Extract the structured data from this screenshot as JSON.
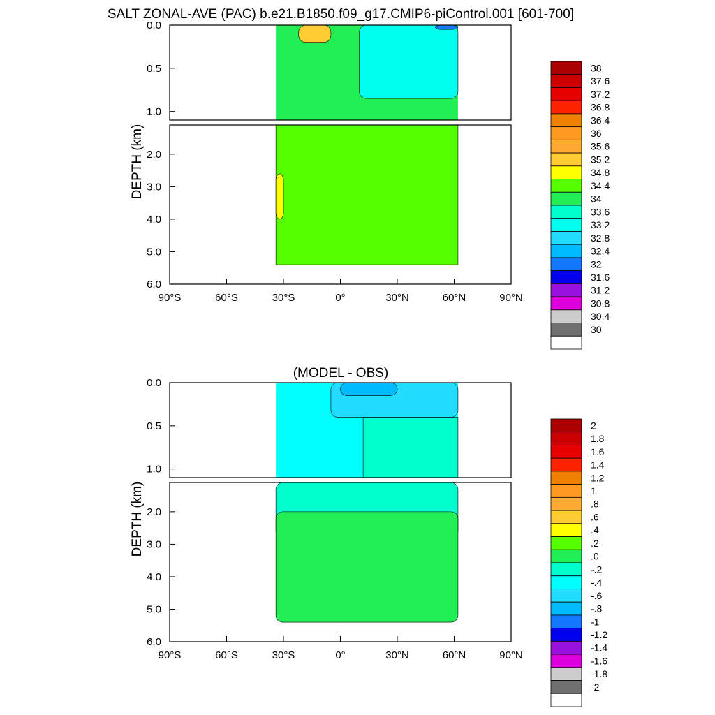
{
  "figure_title": "SALT ZONAL-AVE (PAC) b.e21.B1850.f09_g17.CMIP6-piControl.001 [601-700]",
  "chart_data": [
    {
      "type": "contour",
      "title": "SALT ZONAL-AVE (PAC) b.e21.B1850.f09_g17.CMIP6-piControl.001 [601-700]",
      "xlabel": "",
      "ylabel": "DEPTH (km)",
      "xlim": [
        -90,
        90
      ],
      "upper_ylim": [
        0.0,
        1.1
      ],
      "lower_ylim": [
        1.1,
        6.0
      ],
      "x_ticks": [
        {
          "value": -90,
          "label": "90°S"
        },
        {
          "value": -60,
          "label": "60°S"
        },
        {
          "value": -30,
          "label": "30°S"
        },
        {
          "value": 0,
          "label": "0°"
        },
        {
          "value": 30,
          "label": "30°N"
        },
        {
          "value": 60,
          "label": "60°N"
        },
        {
          "value": 90,
          "label": "90°N"
        }
      ],
      "y_ticks_upper": [
        {
          "value": 0.0,
          "label": "0.0"
        },
        {
          "value": 0.5,
          "label": "0.5"
        },
        {
          "value": 1.0,
          "label": "1.0"
        }
      ],
      "y_ticks_lower": [
        {
          "value": 2.0,
          "label": "2.0"
        },
        {
          "value": 3.0,
          "label": "3.0"
        },
        {
          "value": 4.0,
          "label": "4.0"
        },
        {
          "value": 5.0,
          "label": "5.0"
        },
        {
          "value": 6.0,
          "label": "6.0"
        }
      ],
      "colorbar": {
        "labels": [
          "38",
          "37.6",
          "37.2",
          "36.8",
          "36.4",
          "36",
          "35.6",
          "35.2",
          "34.8",
          "34.4",
          "34",
          "33.6",
          "33.2",
          "32.8",
          "32.4",
          "32",
          "31.6",
          "31.2",
          "30.8",
          "30.4",
          "30"
        ],
        "colors": [
          "#aa0000",
          "#cc0000",
          "#e60000",
          "#ff2200",
          "#f08000",
          "#ff9922",
          "#ffaa33",
          "#ffcc33",
          "#ffff00",
          "#55ff00",
          "#22ee55",
          "#00ffcc",
          "#00ffee",
          "#22ddff",
          "#00bbff",
          "#1177ff",
          "#0000ee",
          "#9911dd",
          "#dd00dd",
          "#cccccc",
          "#707070",
          "#ffffff"
        ]
      },
      "color_regions": [
        {
          "color": "#22ee55",
          "lat_min": -34,
          "lat_max": 62,
          "depth_min": 0.0,
          "depth_max": 1.1
        },
        {
          "color": "#55ff00",
          "lat_min": -34,
          "lat_max": 62,
          "depth_min": 1.1,
          "depth_max": 5.4
        },
        {
          "color": "#ffff00",
          "lat_min": -34,
          "lat_max": -30,
          "depth_min": 2.6,
          "depth_max": 4.0
        },
        {
          "color": "#ffcc33",
          "lat_min": -22,
          "lat_max": -5,
          "depth_min": 0.0,
          "depth_max": 0.2
        },
        {
          "color": "#00ffee",
          "lat_min": 10,
          "lat_max": 62,
          "depth_min": 0.0,
          "depth_max": 0.85
        },
        {
          "color": "#1177ff",
          "lat_min": 50,
          "lat_max": 62,
          "depth_min": 0.0,
          "depth_max": 0.05
        }
      ]
    },
    {
      "type": "contour",
      "title": "(MODEL - OBS)",
      "xlabel": "",
      "ylabel": "DEPTH (km)",
      "xlim": [
        -90,
        90
      ],
      "upper_ylim": [
        0.0,
        1.1
      ],
      "lower_ylim": [
        1.1,
        6.0
      ],
      "x_ticks": [
        {
          "value": -90,
          "label": "90°S"
        },
        {
          "value": -60,
          "label": "60°S"
        },
        {
          "value": -30,
          "label": "30°S"
        },
        {
          "value": 0,
          "label": "0°"
        },
        {
          "value": 30,
          "label": "30°N"
        },
        {
          "value": 60,
          "label": "60°N"
        },
        {
          "value": 90,
          "label": "90°N"
        }
      ],
      "y_ticks_upper": [
        {
          "value": 0.0,
          "label": "0.0"
        },
        {
          "value": 0.5,
          "label": "0.5"
        },
        {
          "value": 1.0,
          "label": "1.0"
        }
      ],
      "y_ticks_lower": [
        {
          "value": 2.0,
          "label": "2.0"
        },
        {
          "value": 3.0,
          "label": "3.0"
        },
        {
          "value": 4.0,
          "label": "4.0"
        },
        {
          "value": 5.0,
          "label": "5.0"
        },
        {
          "value": 6.0,
          "label": "6.0"
        }
      ],
      "colorbar": {
        "labels": [
          "2",
          "1.8",
          "1.6",
          "1.4",
          "1.2",
          "1",
          ".8",
          ".6",
          ".4",
          ".2",
          ".0",
          "-.2",
          "-.4",
          "-.6",
          "-.8",
          "-1",
          "-1.2",
          "-1.4",
          "-1.6",
          "-1.8",
          "-2"
        ],
        "colors": [
          "#aa0000",
          "#cc0000",
          "#e60000",
          "#ff2200",
          "#f08000",
          "#ff9922",
          "#ffaa33",
          "#ffcc33",
          "#ffff00",
          "#55ff00",
          "#22ee55",
          "#00ffcc",
          "#00ffff",
          "#22ddff",
          "#00bbff",
          "#1177ff",
          "#0000ee",
          "#9911dd",
          "#dd00dd",
          "#cccccc",
          "#707070",
          "#ffffff"
        ]
      },
      "color_regions": [
        {
          "color": "#00ffff",
          "lat_min": -34,
          "lat_max": 62,
          "depth_min": 0.0,
          "depth_max": 1.1
        },
        {
          "color": "#00ffcc",
          "lat_min": 12,
          "lat_max": 62,
          "depth_min": 0.4,
          "depth_max": 1.1
        },
        {
          "color": "#00ffcc",
          "lat_min": -34,
          "lat_max": 62,
          "depth_min": 1.1,
          "depth_max": 2.8
        },
        {
          "color": "#22ee55",
          "lat_min": -34,
          "lat_max": 62,
          "depth_min": 2.0,
          "depth_max": 5.4
        },
        {
          "color": "#22ddff",
          "lat_min": -5,
          "lat_max": 62,
          "depth_min": 0.0,
          "depth_max": 0.4
        },
        {
          "color": "#00bbff",
          "lat_min": 0,
          "lat_max": 30,
          "depth_min": 0.0,
          "depth_max": 0.15
        }
      ]
    }
  ]
}
